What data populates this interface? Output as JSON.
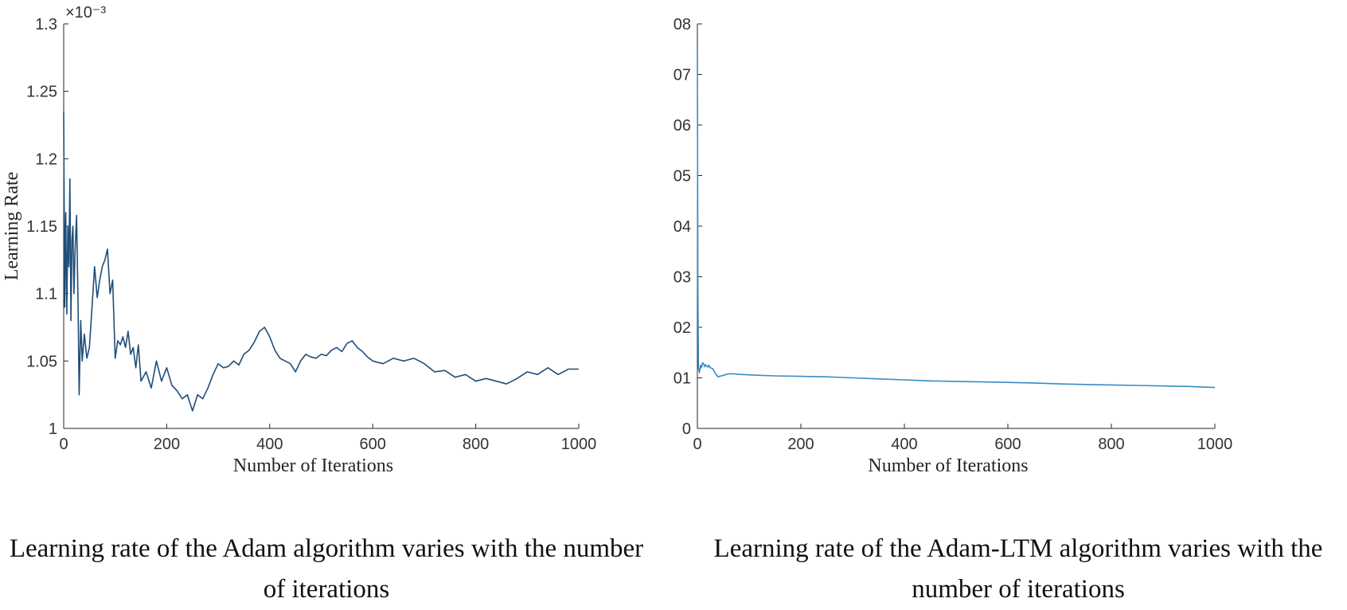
{
  "chart_data": [
    {
      "type": "line",
      "caption": "Learning rate of the Adam algorithm varies with the number of iterations",
      "xlabel": "Number of Iterations",
      "ylabel": "Learning Rate",
      "scale_note": "×10⁻³",
      "xlim": [
        0,
        1000
      ],
      "ylim": [
        1.0,
        1.3
      ],
      "xticks": [
        "0",
        "200",
        "400",
        "600",
        "800",
        "1000"
      ],
      "yticks": [
        "1",
        "1.05",
        "1.1",
        "1.15",
        "1.2",
        "1.25",
        "1.3"
      ],
      "grid": false,
      "color": "#1f4e79",
      "series": [
        {
          "x": [
            0,
            2,
            4,
            6,
            8,
            10,
            12,
            14,
            16,
            18,
            20,
            22,
            25,
            28,
            30,
            33,
            36,
            40,
            45,
            50,
            55,
            60,
            65,
            70,
            75,
            80,
            85,
            90,
            95,
            100,
            105,
            110,
            115,
            120,
            125,
            130,
            135,
            140,
            145,
            150,
            160,
            170,
            180,
            190,
            200,
            210,
            220,
            230,
            240,
            250,
            260,
            270,
            280,
            290,
            300,
            310,
            320,
            330,
            340,
            350,
            360,
            370,
            380,
            390,
            400,
            410,
            420,
            430,
            440,
            450,
            460,
            470,
            480,
            490,
            500,
            510,
            520,
            530,
            540,
            550,
            560,
            570,
            580,
            590,
            600,
            620,
            640,
            660,
            680,
            700,
            720,
            740,
            760,
            780,
            800,
            820,
            840,
            860,
            880,
            900,
            920,
            940,
            960,
            980,
            1000
          ],
          "y": [
            1.235,
            1.09,
            1.16,
            1.085,
            1.15,
            1.12,
            1.185,
            1.08,
            1.14,
            1.15,
            1.1,
            1.13,
            1.158,
            1.09,
            1.025,
            1.08,
            1.05,
            1.07,
            1.052,
            1.06,
            1.09,
            1.12,
            1.097,
            1.11,
            1.12,
            1.125,
            1.133,
            1.1,
            1.11,
            1.052,
            1.065,
            1.062,
            1.068,
            1.06,
            1.072,
            1.055,
            1.06,
            1.045,
            1.062,
            1.035,
            1.042,
            1.03,
            1.05,
            1.035,
            1.045,
            1.032,
            1.028,
            1.022,
            1.025,
            1.013,
            1.025,
            1.022,
            1.03,
            1.04,
            1.048,
            1.045,
            1.046,
            1.05,
            1.047,
            1.055,
            1.058,
            1.064,
            1.072,
            1.075,
            1.068,
            1.058,
            1.052,
            1.05,
            1.048,
            1.042,
            1.05,
            1.055,
            1.053,
            1.052,
            1.055,
            1.054,
            1.058,
            1.06,
            1.057,
            1.063,
            1.065,
            1.06,
            1.057,
            1.053,
            1.05,
            1.048,
            1.052,
            1.05,
            1.052,
            1.048,
            1.042,
            1.043,
            1.038,
            1.04,
            1.035,
            1.037,
            1.035,
            1.033,
            1.037,
            1.042,
            1.04,
            1.045,
            1.04,
            1.044,
            1.044
          ]
        }
      ]
    },
    {
      "type": "line",
      "caption": "Learning rate of the Adam-LTM algorithm varies with the number of iterations",
      "xlabel": "Number of Iterations",
      "ylabel": "Learning Rate",
      "xlim": [
        0,
        1000
      ],
      "ylim": [
        0,
        0.08
      ],
      "xticks": [
        "0",
        "200",
        "400",
        "600",
        "800",
        "1000"
      ],
      "yticks": [
        "0",
        "0.01",
        "0.02",
        "0.03",
        "0.04",
        "0.05",
        "0.06",
        "0.07",
        "0.08"
      ],
      "grid": false,
      "color": "#3a8cc4",
      "series": [
        {
          "x": [
            0,
            1,
            2,
            4,
            6,
            8,
            10,
            12,
            14,
            16,
            18,
            20,
            22,
            25,
            30,
            35,
            40,
            50,
            60,
            70,
            80,
            100,
            120,
            150,
            200,
            250,
            300,
            350,
            400,
            450,
            500,
            550,
            600,
            650,
            700,
            750,
            800,
            850,
            900,
            950,
            1000
          ],
          "y": [
            0.075,
            0.03,
            0.012,
            0.011,
            0.0125,
            0.012,
            0.013,
            0.0128,
            0.0122,
            0.0126,
            0.0124,
            0.0121,
            0.0125,
            0.012,
            0.0118,
            0.0108,
            0.0102,
            0.0105,
            0.0108,
            0.0108,
            0.0107,
            0.0106,
            0.0105,
            0.0104,
            0.0103,
            0.0102,
            0.01,
            0.0098,
            0.0096,
            0.0094,
            0.0093,
            0.0092,
            0.0091,
            0.009,
            0.0088,
            0.0087,
            0.0086,
            0.0085,
            0.0084,
            0.0083,
            0.0081
          ]
        }
      ]
    }
  ]
}
